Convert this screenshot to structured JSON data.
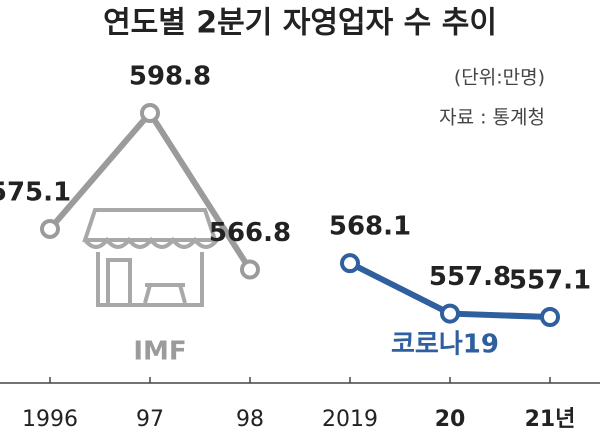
{
  "chart_data": {
    "type": "line",
    "title": "연도별 2분기 자영업자 수 추이",
    "unit": "(단위:만명)",
    "source": "자료 : 통계청",
    "categories": [
      "1996",
      "97",
      "98",
      "2019",
      "20",
      "21년"
    ],
    "series": [
      {
        "name": "IMF",
        "color": "#9b9b9b",
        "values": [
          575.1,
          598.8,
          566.8,
          null,
          null,
          null
        ]
      },
      {
        "name": "코로나19",
        "color": "#2f5f9e",
        "values": [
          null,
          null,
          null,
          568.1,
          557.8,
          557.1
        ]
      }
    ]
  }
}
